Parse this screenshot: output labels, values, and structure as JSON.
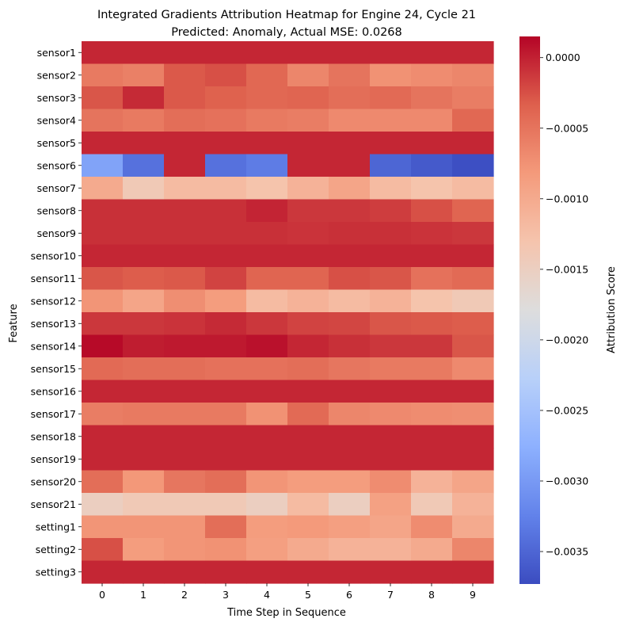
{
  "chart_data": {
    "type": "heatmap",
    "title_line1": "Integrated Gradients Attribution Heatmap for Engine 24, Cycle 21",
    "title_line2": "Predicted: Anomaly, Actual MSE: 0.0268",
    "xlabel": "Time Step in Sequence",
    "ylabel": "Feature",
    "colorbar_label": "Attribution Score",
    "colormap": "coolwarm",
    "vmin": -0.00373,
    "vmax": 0.00015,
    "colorbar_ticks": [
      0.0,
      -0.0005,
      -0.001,
      -0.0015,
      -0.002,
      -0.0025,
      -0.003,
      -0.0035
    ],
    "colorbar_tick_labels": [
      "0.0000",
      "−0.0005",
      "−0.0010",
      "−0.0015",
      "−0.0020",
      "−0.0025",
      "−0.0030",
      "−0.0035"
    ],
    "x": [
      "0",
      "1",
      "2",
      "3",
      "4",
      "5",
      "6",
      "7",
      "8",
      "9"
    ],
    "y": [
      "sensor1",
      "sensor2",
      "sensor3",
      "sensor4",
      "sensor5",
      "sensor6",
      "sensor7",
      "sensor8",
      "sensor9",
      "sensor10",
      "sensor11",
      "sensor12",
      "sensor13",
      "sensor14",
      "sensor15",
      "sensor16",
      "sensor17",
      "sensor18",
      "sensor19",
      "sensor20",
      "sensor21",
      "setting1",
      "setting2",
      "setting3"
    ],
    "values": [
      [
        -3e-05,
        -3e-05,
        -3e-05,
        -3e-05,
        -3e-05,
        -3e-05,
        -3e-05,
        -3e-05,
        -3e-05,
        -3e-05
      ],
      [
        -0.00055,
        -0.0006,
        -0.0003,
        -0.00025,
        -0.0004,
        -0.00065,
        -0.0005,
        -0.00075,
        -0.0007,
        -0.00065
      ],
      [
        -0.00028,
        -5e-05,
        -0.0003,
        -0.00035,
        -0.0004,
        -0.00038,
        -0.00045,
        -0.00042,
        -0.0005,
        -0.00058
      ],
      [
        -0.0005,
        -0.00055,
        -0.00045,
        -0.00048,
        -0.00055,
        -0.00058,
        -0.00068,
        -0.00068,
        -0.00068,
        -0.0004
      ],
      [
        -3e-05,
        -3e-05,
        -3e-05,
        -3e-05,
        -3e-05,
        -3e-05,
        -3e-05,
        -3e-05,
        -3e-05,
        -3e-05
      ],
      [
        -0.0029,
        -0.0034,
        -3e-05,
        -0.0034,
        -0.0033,
        -3e-05,
        -3e-05,
        -0.0035,
        -0.0036,
        -0.0037
      ],
      [
        -0.001,
        -0.0014,
        -0.0012,
        -0.0012,
        -0.0013,
        -0.0011,
        -0.00095,
        -0.0012,
        -0.0013,
        -0.0012
      ],
      [
        -8e-05,
        -8e-05,
        -8e-05,
        -8e-05,
        -2e-05,
        -0.00012,
        -0.00012,
        -0.00015,
        -0.00025,
        -0.00038
      ],
      [
        -8e-05,
        -8e-05,
        -8e-05,
        -8e-05,
        -8e-05,
        -0.0001,
        -8e-05,
        -8e-05,
        -0.0001,
        -0.00012
      ],
      [
        -3e-05,
        -3e-05,
        -3e-05,
        -3e-05,
        -3e-05,
        -3e-05,
        -3e-05,
        -3e-05,
        -3e-05,
        -3e-05
      ],
      [
        -0.00028,
        -0.00032,
        -0.0003,
        -0.00018,
        -0.00038,
        -0.00038,
        -0.00025,
        -0.00028,
        -0.00048,
        -0.00042
      ],
      [
        -0.00078,
        -0.00095,
        -0.00072,
        -0.00085,
        -0.0012,
        -0.0011,
        -0.0012,
        -0.0011,
        -0.0013,
        -0.0014
      ],
      [
        -0.00012,
        -0.00012,
        -0.0001,
        -5e-05,
        -0.00012,
        -0.00018,
        -0.0002,
        -0.00028,
        -0.0003,
        -0.00032
      ],
      [
        0.00012,
        2e-05,
        4e-05,
        4e-05,
        8e-05,
        -3e-05,
        -8e-05,
        -0.00012,
        -0.00012,
        -0.00028
      ],
      [
        -0.00042,
        -0.00045,
        -0.00045,
        -0.00048,
        -0.00048,
        -0.00045,
        -0.00052,
        -0.00055,
        -0.00055,
        -0.00068
      ],
      [
        -3e-05,
        -3e-05,
        -3e-05,
        -3e-05,
        -3e-05,
        -3e-05,
        -3e-05,
        -3e-05,
        -3e-05,
        -3e-05
      ],
      [
        -0.00058,
        -0.00055,
        -0.00055,
        -0.00055,
        -0.00075,
        -0.00042,
        -0.00065,
        -0.00068,
        -0.0007,
        -0.00072
      ],
      [
        -3e-05,
        -3e-05,
        -3e-05,
        -3e-05,
        -3e-05,
        -3e-05,
        -3e-05,
        -3e-05,
        -3e-05,
        -3e-05
      ],
      [
        -3e-05,
        -3e-05,
        -3e-05,
        -3e-05,
        -3e-05,
        -3e-05,
        -3e-05,
        -3e-05,
        -3e-05,
        -3e-05
      ],
      [
        -0.00045,
        -0.0008,
        -0.00052,
        -0.00045,
        -0.00078,
        -0.00085,
        -0.00085,
        -0.0007,
        -0.0011,
        -0.00095
      ],
      [
        -0.0015,
        -0.0014,
        -0.0014,
        -0.0014,
        -0.0015,
        -0.0012,
        -0.0015,
        -0.0009,
        -0.0014,
        -0.0011
      ],
      [
        -0.00078,
        -0.00078,
        -0.00078,
        -0.00045,
        -0.00085,
        -0.00082,
        -0.00088,
        -0.00095,
        -0.0007,
        -0.001
      ],
      [
        -0.00025,
        -0.00085,
        -0.00078,
        -0.00075,
        -0.00088,
        -0.001,
        -0.0011,
        -0.0011,
        -0.001,
        -0.00065
      ],
      [
        -3e-05,
        -3e-05,
        -3e-05,
        -3e-05,
        -3e-05,
        -3e-05,
        -3e-05,
        -3e-05,
        -3e-05,
        -3e-05
      ]
    ]
  }
}
